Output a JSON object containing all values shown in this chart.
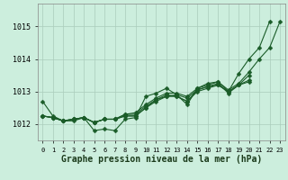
{
  "title": "Graphe pression niveau de la mer (hPa)",
  "background_color": "#cceedd",
  "grid_color": "#aaccbb",
  "line_color": "#1a5c28",
  "x_labels": [
    "0",
    "1",
    "2",
    "3",
    "4",
    "5",
    "6",
    "7",
    "8",
    "9",
    "10",
    "11",
    "12",
    "13",
    "14",
    "15",
    "16",
    "17",
    "18",
    "19",
    "20",
    "21",
    "22",
    "23"
  ],
  "ylim": [
    1011.5,
    1015.7
  ],
  "yticks": [
    1012,
    1013,
    1014,
    1015
  ],
  "series": [
    [
      1012.7,
      1012.25,
      1012.1,
      1012.1,
      1012.2,
      1011.8,
      1011.85,
      1011.8,
      1012.15,
      1012.2,
      1012.85,
      1012.95,
      1013.1,
      1012.9,
      1012.6,
      1013.1,
      1013.25,
      1013.3,
      1013.0,
      1013.55,
      1014.0,
      1014.35,
      1015.15,
      null
    ],
    [
      1012.25,
      1012.2,
      1012.1,
      1012.15,
      1012.2,
      1012.05,
      1012.15,
      1012.15,
      1012.25,
      1012.25,
      1012.5,
      1012.7,
      1012.85,
      1012.9,
      1012.8,
      1013.05,
      1013.15,
      1013.2,
      1013.0,
      1013.2,
      1013.3,
      null,
      null,
      null
    ],
    [
      1012.25,
      1012.2,
      1012.1,
      1012.15,
      1012.2,
      1012.05,
      1012.15,
      1012.15,
      1012.3,
      1012.35,
      1012.6,
      1012.8,
      1012.95,
      1012.95,
      1012.85,
      1013.1,
      1013.2,
      1013.3,
      1013.05,
      1013.25,
      1013.6,
      1014.0,
      1014.35,
      1015.15
    ],
    [
      1012.25,
      1012.2,
      1012.1,
      1012.15,
      1012.2,
      1012.05,
      1012.15,
      1012.15,
      1012.3,
      1012.3,
      1012.55,
      1012.75,
      1012.9,
      1012.85,
      1012.7,
      1013.05,
      1013.15,
      1013.25,
      1012.95,
      1013.2,
      1013.5,
      null,
      null,
      null
    ],
    [
      1012.25,
      1012.2,
      1012.1,
      1012.15,
      1012.2,
      1012.05,
      1012.15,
      1012.15,
      1012.25,
      1012.25,
      1012.5,
      1012.75,
      1012.85,
      1012.85,
      1012.7,
      1013.0,
      1013.1,
      1013.2,
      1013.0,
      1013.2,
      1013.35,
      null,
      null,
      null
    ]
  ],
  "marker": "D",
  "markersize": 2.5,
  "linewidth": 0.8,
  "tick_fontsize": 6,
  "title_fontsize": 7,
  "xtick_fontsize": 5
}
